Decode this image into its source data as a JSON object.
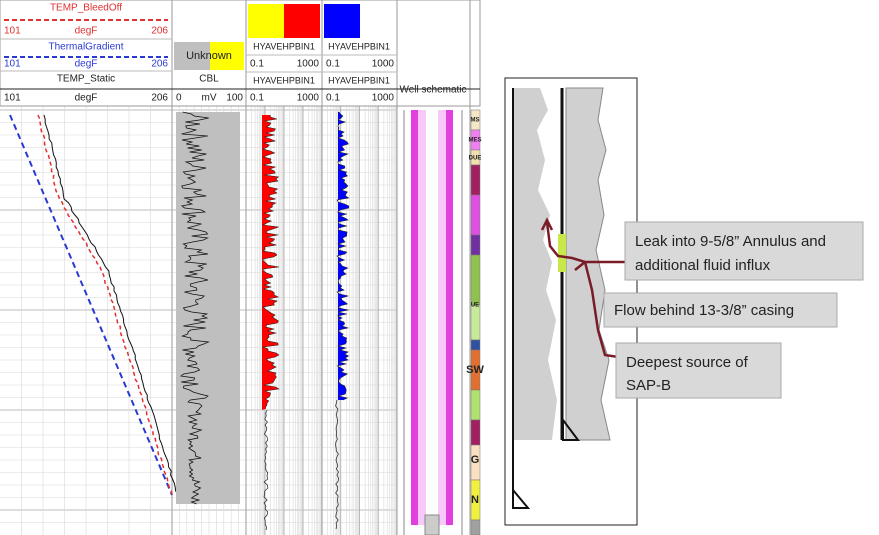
{
  "log_header": {
    "temp": {
      "bleedoff": "TEMP_BleedOff",
      "bleedoff_min": 101,
      "bleedoff_unit": "degF",
      "bleedoff_max": 206,
      "gradient": "ThermalGradient",
      "gradient_min": 101,
      "gradient_unit": "degF",
      "gradient_max": 206,
      "static": "TEMP_Static",
      "static_min": 101,
      "static_unit": "degF",
      "static_max": 206
    },
    "cbl": {
      "flag": "Unknown",
      "name": "CBL",
      "min": 0,
      "unit": "mV",
      "max": 100
    },
    "track3": {
      "name1": "HYAVEHPBIN1",
      "min1": 0.1,
      "max1": 1000,
      "name2": "HYAVEHPBIN1",
      "min2": 0.1,
      "max2": 1000
    },
    "track4": {
      "name1": "HYAVEHPBIN1",
      "min1": 0.1,
      "max1": 1000,
      "name2": "HYAVEHPBIN1",
      "min2": 0.1,
      "max2": 1000
    },
    "schematic": "Well schematic"
  },
  "formations": [
    "MS",
    "MES",
    "DUE",
    "UE",
    "SW",
    "G",
    "N"
  ],
  "callouts": {
    "leak_line1": "Leak into 9-5/8” Annulus and",
    "leak_line2": "additional fluid influx",
    "flow": "Flow behind 13-3/8” casing",
    "source_line1": "Deepest source of",
    "source_line2": "SAP-B"
  }
}
